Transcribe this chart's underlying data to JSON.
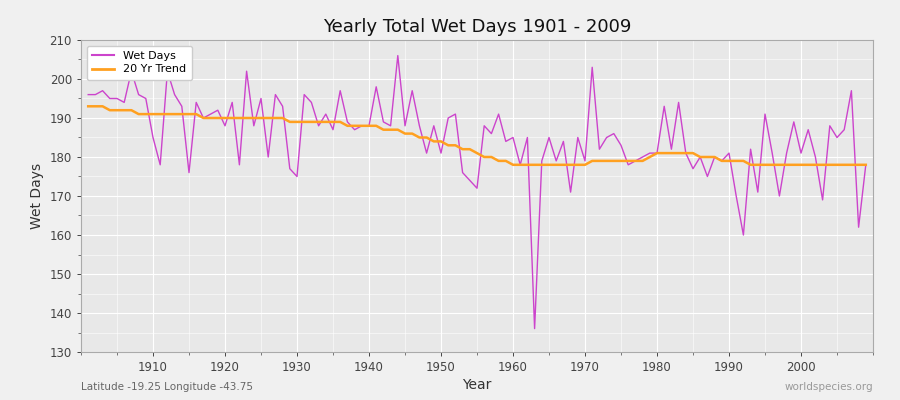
{
  "title": "Yearly Total Wet Days 1901 - 2009",
  "xlabel": "Year",
  "ylabel": "Wet Days",
  "subtitle": "Latitude -19.25 Longitude -43.75",
  "watermark": "worldspecies.org",
  "ylim": [
    130,
    210
  ],
  "yticks": [
    130,
    140,
    150,
    160,
    170,
    180,
    190,
    200,
    210
  ],
  "wet_days_color": "#CC44CC",
  "trend_color": "#FFA020",
  "fig_facecolor": "#F0F0F0",
  "plot_bg_color": "#E8E8E8",
  "legend_label_wet": "Wet Days",
  "legend_label_trend": "20 Yr Trend",
  "years": [
    1901,
    1902,
    1903,
    1904,
    1905,
    1906,
    1907,
    1908,
    1909,
    1910,
    1911,
    1912,
    1913,
    1914,
    1915,
    1916,
    1917,
    1918,
    1919,
    1920,
    1921,
    1922,
    1923,
    1924,
    1925,
    1926,
    1927,
    1928,
    1929,
    1930,
    1931,
    1932,
    1933,
    1934,
    1935,
    1936,
    1937,
    1938,
    1939,
    1940,
    1941,
    1942,
    1943,
    1944,
    1945,
    1946,
    1947,
    1948,
    1949,
    1950,
    1951,
    1952,
    1953,
    1954,
    1955,
    1956,
    1957,
    1958,
    1959,
    1960,
    1961,
    1962,
    1963,
    1964,
    1965,
    1966,
    1967,
    1968,
    1969,
    1970,
    1971,
    1972,
    1973,
    1974,
    1975,
    1976,
    1977,
    1978,
    1979,
    1980,
    1981,
    1982,
    1983,
    1984,
    1985,
    1986,
    1987,
    1988,
    1989,
    1990,
    1991,
    1992,
    1993,
    1994,
    1995,
    1996,
    1997,
    1998,
    1999,
    2000,
    2001,
    2002,
    2003,
    2004,
    2005,
    2006,
    2007,
    2008,
    2009
  ],
  "wet_days": [
    196,
    196,
    197,
    195,
    195,
    194,
    202,
    196,
    195,
    185,
    178,
    202,
    196,
    193,
    176,
    194,
    190,
    191,
    192,
    188,
    194,
    178,
    202,
    188,
    195,
    180,
    196,
    193,
    177,
    175,
    196,
    194,
    188,
    191,
    187,
    197,
    189,
    187,
    188,
    188,
    198,
    189,
    188,
    206,
    188,
    197,
    188,
    181,
    188,
    181,
    190,
    191,
    176,
    174,
    172,
    188,
    186,
    191,
    184,
    185,
    178,
    185,
    136,
    179,
    185,
    179,
    184,
    171,
    185,
    179,
    203,
    182,
    185,
    186,
    183,
    178,
    179,
    180,
    181,
    181,
    193,
    182,
    194,
    181,
    177,
    180,
    175,
    180,
    179,
    181,
    170,
    160,
    182,
    171,
    191,
    181,
    170,
    181,
    189,
    181,
    187,
    180,
    169,
    188,
    185,
    187,
    197,
    162,
    178
  ],
  "trend": [
    193,
    193,
    193,
    192,
    192,
    192,
    192,
    191,
    191,
    191,
    191,
    191,
    191,
    191,
    191,
    191,
    190,
    190,
    190,
    190,
    190,
    190,
    190,
    190,
    190,
    190,
    190,
    190,
    189,
    189,
    189,
    189,
    189,
    189,
    189,
    189,
    188,
    188,
    188,
    188,
    188,
    187,
    187,
    187,
    186,
    186,
    185,
    185,
    184,
    184,
    183,
    183,
    182,
    182,
    181,
    180,
    180,
    179,
    179,
    178,
    178,
    178,
    178,
    178,
    178,
    178,
    178,
    178,
    178,
    178,
    179,
    179,
    179,
    179,
    179,
    179,
    179,
    179,
    180,
    181,
    181,
    181,
    181,
    181,
    181,
    180,
    180,
    180,
    179,
    179,
    179,
    179,
    178,
    178,
    178,
    178,
    178,
    178,
    178,
    178,
    178,
    178,
    178,
    178,
    178,
    178,
    178,
    178,
    178
  ]
}
